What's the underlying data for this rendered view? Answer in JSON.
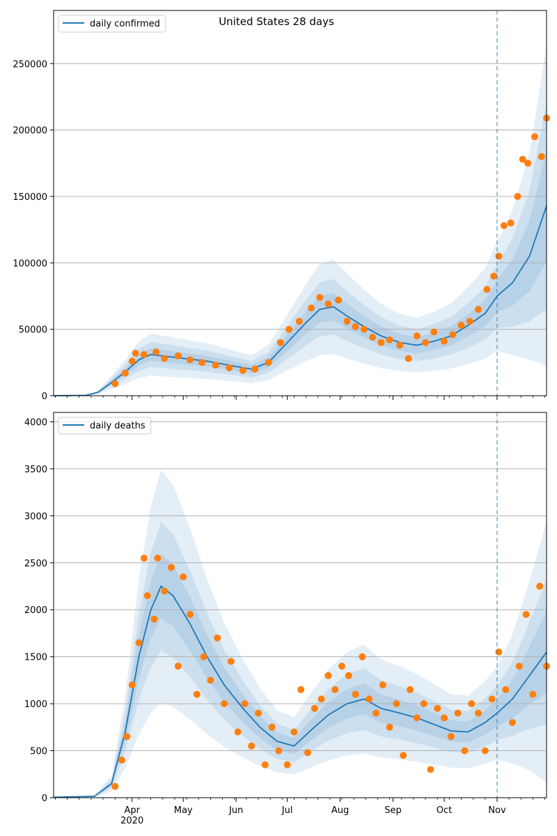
{
  "chart_data": {
    "type": "line",
    "title": "United States 28 days",
    "xlabel": "",
    "x_domain": [
      "2020-02-15",
      "2020-11-30"
    ],
    "forecast_start": "2020-11-01",
    "x_major_ticks": [
      "Apr\n2020",
      "May",
      "Jun",
      "Jul",
      "Aug",
      "Sep",
      "Oct",
      "Nov"
    ],
    "x_major_dates": [
      "2020-04-01",
      "2020-05-01",
      "2020-06-01",
      "2020-07-01",
      "2020-08-01",
      "2020-09-01",
      "2020-10-01",
      "2020-11-01"
    ],
    "grid": "horizontal",
    "colors": {
      "line": "#1f77b4",
      "points": "#ff7f0e",
      "band": "#1f77b4",
      "grid": "#b0b0b0",
      "vline": "#1f77b4"
    },
    "panels": [
      {
        "name": "confirmed",
        "legend": "daily confirmed",
        "legend_position": "upper-left",
        "ylim": [
          0,
          290000
        ],
        "yticks": [
          0,
          50000,
          100000,
          150000,
          200000,
          250000
        ],
        "ytick_labels": [
          "0",
          "50000",
          "100000",
          "150000",
          "200000",
          "250000"
        ],
        "median_knots": [
          [
            "2020-02-15",
            0
          ],
          [
            "2020-03-05",
            300
          ],
          [
            "2020-03-12",
            2500
          ],
          [
            "2020-03-20",
            10000
          ],
          [
            "2020-03-28",
            18000
          ],
          [
            "2020-04-05",
            27000
          ],
          [
            "2020-04-12",
            31000
          ],
          [
            "2020-04-25",
            29000
          ],
          [
            "2020-05-15",
            26000
          ],
          [
            "2020-06-01",
            22000
          ],
          [
            "2020-06-10",
            20000
          ],
          [
            "2020-06-20",
            25000
          ],
          [
            "2020-07-01",
            40000
          ],
          [
            "2020-07-12",
            55000
          ],
          [
            "2020-07-20",
            65000
          ],
          [
            "2020-07-28",
            67000
          ],
          [
            "2020-08-05",
            60000
          ],
          [
            "2020-08-15",
            52000
          ],
          [
            "2020-08-25",
            45000
          ],
          [
            "2020-09-05",
            40000
          ],
          [
            "2020-09-15",
            38000
          ],
          [
            "2020-09-25",
            41000
          ],
          [
            "2020-10-05",
            45000
          ],
          [
            "2020-10-15",
            53000
          ],
          [
            "2020-10-25",
            62000
          ],
          [
            "2020-11-01",
            75000
          ],
          [
            "2020-11-10",
            85000
          ],
          [
            "2020-11-20",
            105000
          ],
          [
            "2020-11-30",
            143000
          ]
        ],
        "bands": [
          {
            "level": "50%",
            "half_width": [
              [
                "2020-02-15",
                0.15
              ],
              [
                "2020-11-01",
                0.16
              ],
              [
                "2020-11-30",
                0.3
              ]
            ]
          },
          {
            "level": "80%",
            "half_width": [
              [
                "2020-02-15",
                0.3
              ],
              [
                "2020-11-01",
                0.32
              ],
              [
                "2020-11-30",
                0.55
              ]
            ]
          },
          {
            "level": "95%",
            "half_width": [
              [
                "2020-02-15",
                0.5
              ],
              [
                "2020-11-01",
                0.55
              ],
              [
                "2020-11-30",
                0.85
              ]
            ]
          }
        ],
        "observed": [
          [
            "2020-03-22",
            9000
          ],
          [
            "2020-03-28",
            17000
          ],
          [
            "2020-04-01",
            26000
          ],
          [
            "2020-04-03",
            32000
          ],
          [
            "2020-04-08",
            31000
          ],
          [
            "2020-04-15",
            33000
          ],
          [
            "2020-04-20",
            28000
          ],
          [
            "2020-04-28",
            30000
          ],
          [
            "2020-05-05",
            27000
          ],
          [
            "2020-05-12",
            25000
          ],
          [
            "2020-05-20",
            23000
          ],
          [
            "2020-05-28",
            21000
          ],
          [
            "2020-06-05",
            19000
          ],
          [
            "2020-06-12",
            20000
          ],
          [
            "2020-06-20",
            25000
          ],
          [
            "2020-06-27",
            40000
          ],
          [
            "2020-07-02",
            50000
          ],
          [
            "2020-07-08",
            56000
          ],
          [
            "2020-07-15",
            66000
          ],
          [
            "2020-07-20",
            74000
          ],
          [
            "2020-07-25",
            69000
          ],
          [
            "2020-07-31",
            72000
          ],
          [
            "2020-08-05",
            56000
          ],
          [
            "2020-08-10",
            52000
          ],
          [
            "2020-08-15",
            50000
          ],
          [
            "2020-08-20",
            44000
          ],
          [
            "2020-08-25",
            40000
          ],
          [
            "2020-08-30",
            42000
          ],
          [
            "2020-09-05",
            38000
          ],
          [
            "2020-09-10",
            28000
          ],
          [
            "2020-09-15",
            45000
          ],
          [
            "2020-09-20",
            40000
          ],
          [
            "2020-09-25",
            48000
          ],
          [
            "2020-10-01",
            41000
          ],
          [
            "2020-10-06",
            46000
          ],
          [
            "2020-10-11",
            53000
          ],
          [
            "2020-10-16",
            56000
          ],
          [
            "2020-10-21",
            65000
          ],
          [
            "2020-10-26",
            80000
          ],
          [
            "2020-10-30",
            90000
          ],
          [
            "2020-11-02",
            105000
          ],
          [
            "2020-11-05",
            128000
          ],
          [
            "2020-11-09",
            130000
          ],
          [
            "2020-11-13",
            150000
          ],
          [
            "2020-11-16",
            178000
          ],
          [
            "2020-11-19",
            175000
          ],
          [
            "2020-11-23",
            195000
          ],
          [
            "2020-11-27",
            180000
          ],
          [
            "2020-11-30",
            209000
          ]
        ]
      },
      {
        "name": "deaths",
        "legend": "daily deaths",
        "legend_position": "upper-left",
        "ylim": [
          0,
          4100
        ],
        "yticks": [
          0,
          500,
          1000,
          1500,
          2000,
          2500,
          3000,
          3500,
          4000
        ],
        "ytick_labels": [
          "0",
          "500",
          "1000",
          "1500",
          "2000",
          "2500",
          "3000",
          "3500",
          "4000"
        ],
        "median_knots": [
          [
            "2020-02-15",
            5
          ],
          [
            "2020-03-10",
            15
          ],
          [
            "2020-03-20",
            150
          ],
          [
            "2020-03-28",
            700
          ],
          [
            "2020-04-05",
            1500
          ],
          [
            "2020-04-12",
            2000
          ],
          [
            "2020-04-18",
            2250
          ],
          [
            "2020-04-25",
            2150
          ],
          [
            "2020-05-05",
            1850
          ],
          [
            "2020-05-15",
            1500
          ],
          [
            "2020-05-25",
            1200
          ],
          [
            "2020-06-05",
            950
          ],
          [
            "2020-06-15",
            750
          ],
          [
            "2020-06-25",
            600
          ],
          [
            "2020-07-05",
            550
          ],
          [
            "2020-07-15",
            720
          ],
          [
            "2020-07-25",
            880
          ],
          [
            "2020-08-05",
            1000
          ],
          [
            "2020-08-15",
            1050
          ],
          [
            "2020-08-25",
            950
          ],
          [
            "2020-09-05",
            900
          ],
          [
            "2020-09-15",
            850
          ],
          [
            "2020-09-25",
            780
          ],
          [
            "2020-10-05",
            710
          ],
          [
            "2020-10-15",
            700
          ],
          [
            "2020-10-25",
            800
          ],
          [
            "2020-11-01",
            900
          ],
          [
            "2020-11-10",
            1050
          ],
          [
            "2020-11-20",
            1300
          ],
          [
            "2020-11-30",
            1550
          ]
        ],
        "bands": [
          {
            "level": "50%",
            "half_width": [
              [
                "2020-02-15",
                0.15
              ],
              [
                "2020-11-01",
                0.16
              ],
              [
                "2020-11-30",
                0.28
              ]
            ]
          },
          {
            "level": "80%",
            "half_width": [
              [
                "2020-02-15",
                0.3
              ],
              [
                "2020-11-01",
                0.32
              ],
              [
                "2020-11-30",
                0.5
              ]
            ]
          },
          {
            "level": "95%",
            "half_width": [
              [
                "2020-02-15",
                0.55
              ],
              [
                "2020-11-01",
                0.55
              ],
              [
                "2020-11-30",
                0.9
              ]
            ]
          }
        ],
        "observed": [
          [
            "2020-03-22",
            120
          ],
          [
            "2020-03-26",
            400
          ],
          [
            "2020-03-29",
            650
          ],
          [
            "2020-04-01",
            1200
          ],
          [
            "2020-04-05",
            1650
          ],
          [
            "2020-04-08",
            2550
          ],
          [
            "2020-04-10",
            2150
          ],
          [
            "2020-04-14",
            1900
          ],
          [
            "2020-04-16",
            2550
          ],
          [
            "2020-04-20",
            2200
          ],
          [
            "2020-04-24",
            2450
          ],
          [
            "2020-04-28",
            1400
          ],
          [
            "2020-05-01",
            2350
          ],
          [
            "2020-05-05",
            1950
          ],
          [
            "2020-05-09",
            1100
          ],
          [
            "2020-05-13",
            1500
          ],
          [
            "2020-05-17",
            1250
          ],
          [
            "2020-05-21",
            1700
          ],
          [
            "2020-05-25",
            1000
          ],
          [
            "2020-05-29",
            1450
          ],
          [
            "2020-06-02",
            700
          ],
          [
            "2020-06-06",
            1000
          ],
          [
            "2020-06-10",
            550
          ],
          [
            "2020-06-14",
            900
          ],
          [
            "2020-06-18",
            350
          ],
          [
            "2020-06-22",
            750
          ],
          [
            "2020-06-26",
            500
          ],
          [
            "2020-07-01",
            350
          ],
          [
            "2020-07-05",
            700
          ],
          [
            "2020-07-09",
            1150
          ],
          [
            "2020-07-13",
            480
          ],
          [
            "2020-07-17",
            950
          ],
          [
            "2020-07-21",
            1050
          ],
          [
            "2020-07-25",
            1300
          ],
          [
            "2020-07-29",
            1150
          ],
          [
            "2020-08-02",
            1400
          ],
          [
            "2020-08-06",
            1300
          ],
          [
            "2020-08-10",
            1100
          ],
          [
            "2020-08-14",
            1500
          ],
          [
            "2020-08-18",
            1050
          ],
          [
            "2020-08-22",
            900
          ],
          [
            "2020-08-26",
            1200
          ],
          [
            "2020-08-30",
            750
          ],
          [
            "2020-09-03",
            1000
          ],
          [
            "2020-09-07",
            450
          ],
          [
            "2020-09-11",
            1150
          ],
          [
            "2020-09-15",
            850
          ],
          [
            "2020-09-19",
            1000
          ],
          [
            "2020-09-23",
            300
          ],
          [
            "2020-09-27",
            950
          ],
          [
            "2020-10-01",
            850
          ],
          [
            "2020-10-05",
            650
          ],
          [
            "2020-10-09",
            900
          ],
          [
            "2020-10-13",
            500
          ],
          [
            "2020-10-17",
            1000
          ],
          [
            "2020-10-21",
            900
          ],
          [
            "2020-10-25",
            500
          ],
          [
            "2020-10-29",
            1050
          ],
          [
            "2020-11-02",
            1550
          ],
          [
            "2020-11-06",
            1150
          ],
          [
            "2020-11-10",
            800
          ],
          [
            "2020-11-14",
            1400
          ],
          [
            "2020-11-18",
            1950
          ],
          [
            "2020-11-22",
            1100
          ],
          [
            "2020-11-26",
            2250
          ],
          [
            "2020-11-30",
            1400
          ]
        ]
      }
    ]
  }
}
